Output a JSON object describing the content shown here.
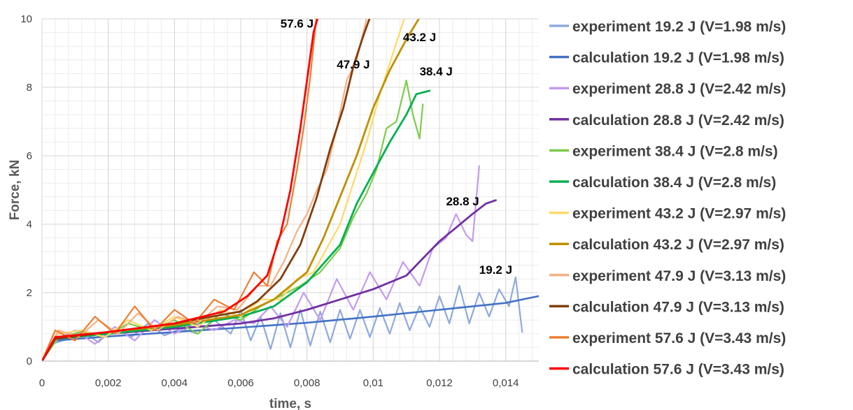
{
  "chart_data": {
    "type": "line",
    "xlabel": "time, s",
    "ylabel": "Force, kN",
    "xlim": [
      0,
      0.015
    ],
    "ylim": [
      0,
      10
    ],
    "x_ticks": [
      0,
      0.002,
      0.004,
      0.006,
      0.008,
      0.01,
      0.012,
      0.014
    ],
    "x_tick_labels": [
      "0",
      "0,002",
      "0,004",
      "0,006",
      "0,008",
      "0,01",
      "0,012",
      "0,014"
    ],
    "y_ticks": [
      0,
      2,
      4,
      6,
      8,
      10
    ],
    "y_tick_labels": [
      "0",
      "2",
      "4",
      "6",
      "8",
      "10"
    ],
    "grid": true,
    "legend_position": "right",
    "annotations": [
      {
        "text": "57.6 J",
        "x": 0.0072,
        "y": 9.75
      },
      {
        "text": "47.9 J",
        "x": 0.0089,
        "y": 8.55
      },
      {
        "text": "43.2 J",
        "x": 0.0109,
        "y": 9.35
      },
      {
        "text": "38.4 J",
        "x": 0.0114,
        "y": 8.35
      },
      {
        "text": "28.8 J",
        "x": 0.0122,
        "y": 4.55
      },
      {
        "text": "19.2 J",
        "x": 0.0132,
        "y": 2.55
      }
    ],
    "series": [
      {
        "name": "experiment 19.2 J (V=1.98 m/s)",
        "color": "#8faadc",
        "width": 2.2,
        "x": [
          0,
          0.0003,
          0.0008,
          0.0012,
          0.0017,
          0.0022,
          0.0027,
          0.0032,
          0.0037,
          0.0042,
          0.0047,
          0.0052,
          0.0057,
          0.006,
          0.0063,
          0.0066,
          0.0069,
          0.0072,
          0.0075,
          0.0078,
          0.0081,
          0.0084,
          0.0087,
          0.009,
          0.0093,
          0.0096,
          0.0099,
          0.0102,
          0.0105,
          0.0108,
          0.0111,
          0.0114,
          0.0117,
          0.012,
          0.0123,
          0.0126,
          0.0129,
          0.0132,
          0.0135,
          0.0138,
          0.0141,
          0.0143,
          0.0145
        ],
        "y": [
          0,
          0.5,
          0.65,
          0.9,
          0.55,
          1.0,
          0.7,
          1.1,
          0.75,
          0.95,
          0.8,
          1.2,
          0.8,
          1.5,
          0.6,
          1.3,
          0.35,
          1.4,
          0.4,
          1.5,
          0.45,
          1.45,
          0.55,
          1.5,
          0.65,
          1.5,
          0.7,
          1.55,
          0.8,
          1.7,
          0.9,
          1.6,
          1.0,
          1.9,
          1.1,
          2.2,
          1.1,
          2.0,
          1.3,
          2.1,
          1.6,
          2.45,
          0.85
        ]
      },
      {
        "name": "calculation 19.2 J (V=1.98 m/s)",
        "color": "#4472c4",
        "width": 2.6,
        "x": [
          0,
          0.0004,
          0.002,
          0.004,
          0.006,
          0.008,
          0.01,
          0.012,
          0.014,
          0.015
        ],
        "y": [
          0,
          0.6,
          0.72,
          0.85,
          0.98,
          1.12,
          1.3,
          1.5,
          1.7,
          1.9
        ]
      },
      {
        "name": "experiment 28.8 J (V=2.42 m/s)",
        "color": "#c39bf0",
        "width": 2.2,
        "x": [
          0,
          0.0004,
          0.001,
          0.0016,
          0.0022,
          0.0028,
          0.0034,
          0.004,
          0.0046,
          0.0052,
          0.0058,
          0.0064,
          0.0069,
          0.0074,
          0.0079,
          0.0084,
          0.0089,
          0.0094,
          0.0099,
          0.0104,
          0.0109,
          0.0114,
          0.0118,
          0.0122,
          0.0125,
          0.0128,
          0.013,
          0.0132
        ],
        "y": [
          0,
          0.6,
          0.9,
          0.5,
          1.0,
          0.6,
          1.2,
          0.8,
          1.1,
          0.9,
          1.2,
          1.1,
          1.6,
          1.0,
          2.0,
          1.2,
          2.4,
          1.5,
          2.6,
          1.8,
          2.9,
          2.2,
          3.3,
          3.6,
          4.3,
          3.7,
          3.5,
          5.7
        ]
      },
      {
        "name": "calculation 28.8 J (V=2.42 m/s)",
        "color": "#7030a0",
        "width": 2.8,
        "x": [
          0,
          0.0004,
          0.002,
          0.004,
          0.006,
          0.007,
          0.008,
          0.009,
          0.01,
          0.011,
          0.0115,
          0.012,
          0.0125,
          0.013,
          0.0134,
          0.0137
        ],
        "y": [
          0,
          0.65,
          0.8,
          0.95,
          1.1,
          1.25,
          1.5,
          1.8,
          2.1,
          2.5,
          3.0,
          3.5,
          3.9,
          4.3,
          4.6,
          4.7
        ]
      },
      {
        "name": "experiment 38.4 J (V=2.8 m/s)",
        "color": "#7ccb4a",
        "width": 2.2,
        "x": [
          0,
          0.0005,
          0.0012,
          0.0019,
          0.0026,
          0.0033,
          0.004,
          0.0047,
          0.0054,
          0.006,
          0.0066,
          0.0072,
          0.0078,
          0.0084,
          0.009,
          0.0094,
          0.0098,
          0.0101,
          0.0104,
          0.0107,
          0.011,
          0.0112,
          0.0114,
          0.0115
        ],
        "y": [
          0,
          0.7,
          0.85,
          0.7,
          1.1,
          0.9,
          1.2,
          0.8,
          1.4,
          1.2,
          1.6,
          1.9,
          2.2,
          2.6,
          3.3,
          4.2,
          4.9,
          5.6,
          6.8,
          7.0,
          8.2,
          7.2,
          6.5,
          7.5
        ]
      },
      {
        "name": "calculation 38.4 J (V=2.8 m/s)",
        "color": "#00b050",
        "width": 2.8,
        "x": [
          0,
          0.0004,
          0.002,
          0.004,
          0.006,
          0.007,
          0.008,
          0.009,
          0.0095,
          0.01,
          0.0105,
          0.011,
          0.0113,
          0.0117
        ],
        "y": [
          0,
          0.65,
          0.8,
          1.0,
          1.3,
          1.6,
          2.3,
          3.4,
          4.6,
          5.5,
          6.4,
          7.2,
          7.8,
          7.9
        ]
      },
      {
        "name": "experiment 43.2 J (V=2.97 m/s)",
        "color": "#ffd966",
        "width": 2.2,
        "x": [
          0,
          0.0005,
          0.0012,
          0.0019,
          0.0026,
          0.0033,
          0.004,
          0.0047,
          0.0054,
          0.006,
          0.0066,
          0.0072,
          0.0077,
          0.0082,
          0.0086,
          0.009,
          0.0094,
          0.0098,
          0.0102,
          0.0106,
          0.011
        ],
        "y": [
          0,
          0.8,
          0.9,
          0.7,
          1.2,
          0.9,
          1.3,
          1.0,
          1.5,
          1.3,
          1.8,
          1.8,
          2.4,
          2.6,
          3.3,
          4.0,
          5.2,
          6.4,
          7.8,
          9.0,
          10.2
        ]
      },
      {
        "name": "calculation 43.2 J (V=2.97 m/s)",
        "color": "#bf9000",
        "width": 2.8,
        "x": [
          0,
          0.0004,
          0.002,
          0.004,
          0.006,
          0.007,
          0.008,
          0.0085,
          0.009,
          0.0095,
          0.01,
          0.0105,
          0.011,
          0.0115
        ],
        "y": [
          0,
          0.65,
          0.85,
          1.05,
          1.35,
          1.8,
          2.6,
          3.6,
          4.8,
          6.0,
          7.4,
          8.5,
          9.4,
          10.2
        ]
      },
      {
        "name": "experiment 47.9 J (V=3.13 m/s)",
        "color": "#f4b183",
        "width": 2.2,
        "x": [
          0,
          0.0005,
          0.0011,
          0.0017,
          0.0023,
          0.0029,
          0.0035,
          0.0041,
          0.0047,
          0.0053,
          0.0059,
          0.0065,
          0.0069,
          0.0073,
          0.0077,
          0.008,
          0.0083,
          0.0086,
          0.0089,
          0.0092,
          0.0095,
          0.0098,
          0.01
        ],
        "y": [
          0,
          0.9,
          0.7,
          1.2,
          0.8,
          1.4,
          0.9,
          1.3,
          1.1,
          1.6,
          1.5,
          2.2,
          2.2,
          2.9,
          3.8,
          4.3,
          5.0,
          5.6,
          6.8,
          8.2,
          8.8,
          10.0,
          10.3
        ]
      },
      {
        "name": "calculation 47.9 J (V=3.13 m/s)",
        "color": "#843c0c",
        "width": 2.8,
        "x": [
          0,
          0.0004,
          0.002,
          0.004,
          0.006,
          0.0065,
          0.0072,
          0.0078,
          0.0083,
          0.0087,
          0.0091,
          0.0094,
          0.0097,
          0.01
        ],
        "y": [
          0,
          0.65,
          0.85,
          1.1,
          1.45,
          1.75,
          2.4,
          3.4,
          4.8,
          6.2,
          7.4,
          8.6,
          9.5,
          10.3
        ]
      },
      {
        "name": "experiment 57.6 J (V=3.43 m/s)",
        "color": "#ed7d31",
        "width": 2.2,
        "x": [
          0,
          0.0004,
          0.001,
          0.0016,
          0.0022,
          0.0028,
          0.0034,
          0.004,
          0.0046,
          0.0052,
          0.0058,
          0.0064,
          0.0068,
          0.0071,
          0.0074,
          0.0077,
          0.0079,
          0.0081,
          0.0083
        ],
        "y": [
          0,
          0.9,
          0.6,
          1.3,
          0.8,
          1.6,
          0.9,
          1.5,
          1.1,
          1.8,
          1.5,
          2.6,
          2.2,
          3.5,
          4.0,
          5.6,
          6.8,
          8.3,
          10.2
        ]
      },
      {
        "name": "calculation 57.6 J (V=3.43 m/s)",
        "color": "#ff0000",
        "width": 2.8,
        "x": [
          0,
          0.0004,
          0.002,
          0.004,
          0.0055,
          0.0062,
          0.0068,
          0.0072,
          0.0075,
          0.0078,
          0.008,
          0.0082,
          0.0084
        ],
        "y": [
          0,
          0.7,
          0.85,
          1.1,
          1.45,
          1.9,
          2.5,
          3.7,
          5.0,
          6.8,
          8.2,
          9.6,
          10.3
        ]
      }
    ]
  }
}
